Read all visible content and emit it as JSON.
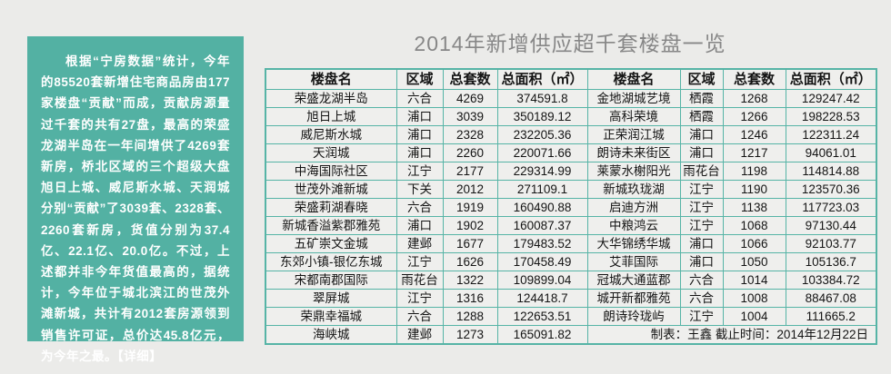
{
  "title": "2014年新增供应超千套楼盘一览",
  "colors": {
    "page_background": "#ebebe9",
    "panel_background": "#53b1a3",
    "table_border": "#56b4a6",
    "table_cell_background": "#efefed",
    "title_text": "#878787",
    "panel_text": "#ffffff"
  },
  "sidebar": {
    "paragraph": "根据“宁房数据”统计，今年的85520套新增住宅商品房由177家楼盘“贡献”而成，贡献房源量过千套的共有27盘，最高的荣盛龙湖半岛在一年间增供了4269套新房，桥北区域的三个超级大盘旭日上城、威尼斯水城、天润城分别“贡献”了3039套、2328套、2260套新房，货值分别为37.4亿、22.1亿、20.0亿。不过，上述都并非今年货值最高的，据统计，今年位于城北滨江的世茂外滩新城，共计有2012套房源领到销售许可证，总价达45.8亿元，为今年之最。",
    "detail_link": "【详细】"
  },
  "table": {
    "headers": [
      "楼盘名",
      "区域",
      "总套数",
      "总面积（㎡）"
    ],
    "left_rows": [
      {
        "name": "荣盛龙湖半岛",
        "region": "六合",
        "units": "4269",
        "area": "374591.8"
      },
      {
        "name": "旭日上城",
        "region": "浦口",
        "units": "3039",
        "area": "350189.12"
      },
      {
        "name": "威尼斯水城",
        "region": "浦口",
        "units": "2328",
        "area": "232205.36"
      },
      {
        "name": "天润城",
        "region": "浦口",
        "units": "2260",
        "area": "220071.66"
      },
      {
        "name": "中海国际社区",
        "region": "江宁",
        "units": "2177",
        "area": "229314.99"
      },
      {
        "name": "世茂外滩新城",
        "region": "下关",
        "units": "2012",
        "area": "271109.1"
      },
      {
        "name": "荣盛莉湖春晓",
        "region": "六合",
        "units": "1919",
        "area": "160490.88"
      },
      {
        "name": "新城香溢紫郡雅苑",
        "region": "浦口",
        "units": "1902",
        "area": "160087.37"
      },
      {
        "name": "五矿崇文金城",
        "region": "建邺",
        "units": "1677",
        "area": "179483.52"
      },
      {
        "name": "东郊小镇-银亿东城",
        "region": "江宁",
        "units": "1626",
        "area": "170458.49"
      },
      {
        "name": "宋都南郡国际",
        "region": "雨花台",
        "units": "1322",
        "area": "109899.04"
      },
      {
        "name": "翠屏城",
        "region": "江宁",
        "units": "1316",
        "area": "124418.7"
      },
      {
        "name": "荣鼎幸福城",
        "region": "六合",
        "units": "1288",
        "area": "122653.51"
      },
      {
        "name": "海峡城",
        "region": "建邺",
        "units": "1273",
        "area": "165091.82"
      }
    ],
    "right_rows": [
      {
        "name": "金地湖城艺境",
        "region": "栖霞",
        "units": "1268",
        "area": "129247.42"
      },
      {
        "name": "高科荣境",
        "region": "栖霞",
        "units": "1266",
        "area": "198228.53"
      },
      {
        "name": "正荣润江城",
        "region": "浦口",
        "units": "1246",
        "area": "122311.24"
      },
      {
        "name": "朗诗未来街区",
        "region": "浦口",
        "units": "1217",
        "area": "94061.01"
      },
      {
        "name": "莱蒙水榭阳光",
        "region": "雨花台",
        "units": "1198",
        "area": "114814.88"
      },
      {
        "name": "新城玖珑湖",
        "region": "江宁",
        "units": "1190",
        "area": "123570.36"
      },
      {
        "name": "启迪方洲",
        "region": "江宁",
        "units": "1138",
        "area": "117723.03"
      },
      {
        "name": "中粮鸿云",
        "region": "江宁",
        "units": "1068",
        "area": "97130.44"
      },
      {
        "name": "大华锦绣华城",
        "region": "浦口",
        "units": "1066",
        "area": "92103.77"
      },
      {
        "name": "艾菲国际",
        "region": "浦口",
        "units": "1050",
        "area": "105136.7"
      },
      {
        "name": "冠城大通蓝郡",
        "region": "六合",
        "units": "1014",
        "area": "103384.72"
      },
      {
        "name": "城开新都雅苑",
        "region": "六合",
        "units": "1008",
        "area": "88467.08"
      },
      {
        "name": "朗诗玲珑屿",
        "region": "江宁",
        "units": "1004",
        "area": "111665.2"
      }
    ],
    "footer_note": "制表：王鑫 截止时间：2014年12月22日"
  }
}
